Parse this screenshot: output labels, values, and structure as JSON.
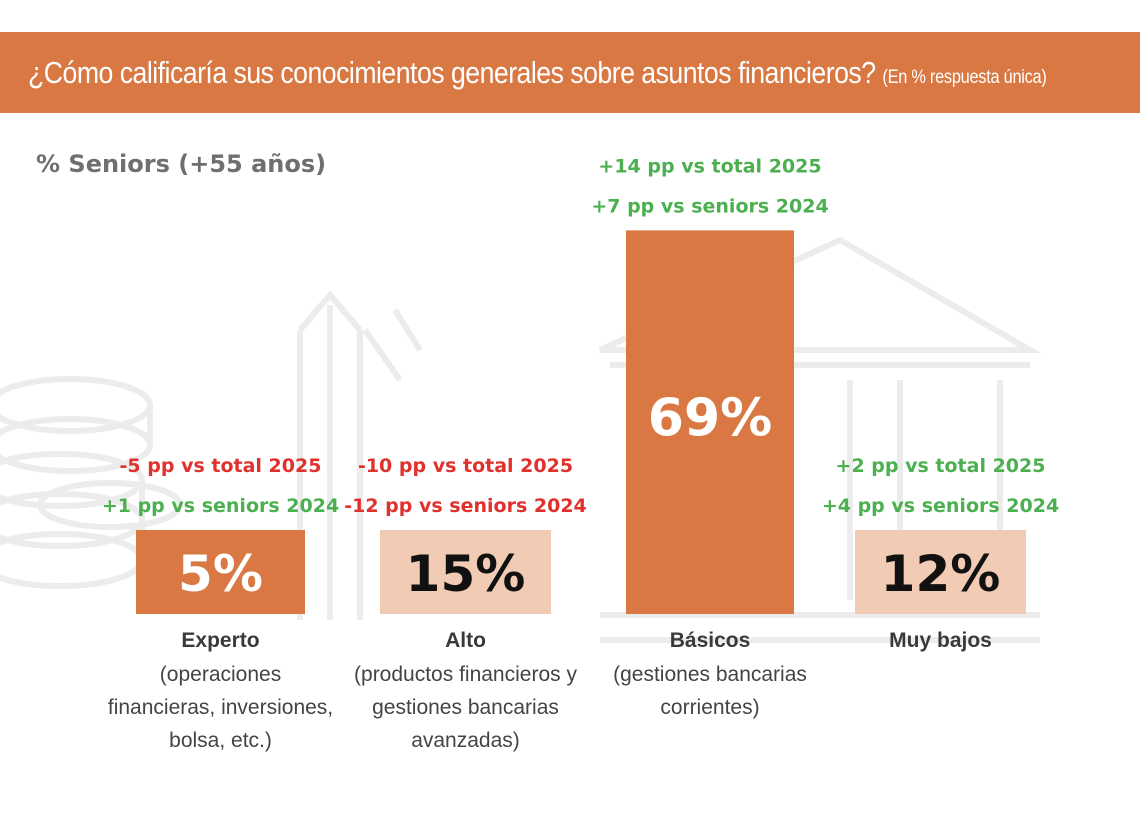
{
  "header": {
    "title": "¿Cómo calificaría sus conocimientos generales sobre asuntos financieros?",
    "title_note": "(En % respuesta única)"
  },
  "colors": {
    "banner": "#d97842",
    "bar_dark": "#d97842",
    "bar_light": "#f1cbb3",
    "negative": "#e0312d",
    "positive": "#4caf50"
  },
  "chart_data": {
    "type": "bar",
    "title": "¿Cómo calificaría sus conocimientos generales sobre asuntos financieros?",
    "subtitle": "% Seniors (+55 años)",
    "unit": "%",
    "categories": [
      "Experto",
      "Alto",
      "Básicos",
      "Muy bajos"
    ],
    "category_descriptions": [
      [
        "(operaciones",
        "financieras, inversiones,",
        "bolsa, etc.)"
      ],
      [
        "(productos financieros y",
        "gestiones bancarias",
        "avanzadas)"
      ],
      [
        "(gestiones bancarias",
        "corrientes)"
      ],
      []
    ],
    "values": [
      5,
      15,
      69,
      12
    ],
    "value_labels": [
      "5%",
      "15%",
      "69%",
      "12%"
    ],
    "bar_styles": [
      "dark",
      "light",
      "dark",
      "light"
    ],
    "comparisons": [
      [
        {
          "text": "-5 pp vs total 2025",
          "sign": "negative"
        },
        {
          "text": "+1 pp vs seniors 2024",
          "sign": "positive"
        }
      ],
      [
        {
          "text": "-10 pp vs total 2025",
          "sign": "negative"
        },
        {
          "text": "-12 pp vs seniors 2024",
          "sign": "negative"
        }
      ],
      [
        {
          "text": "+14 pp vs total 2025",
          "sign": "positive"
        },
        {
          "text": "+7 pp vs seniors 2024",
          "sign": "positive"
        }
      ],
      [
        {
          "text": "+2 pp vs total 2025",
          "sign": "positive"
        },
        {
          "text": "+4 pp vs seniors 2024",
          "sign": "positive"
        }
      ]
    ],
    "ylim": [
      0,
      69
    ],
    "grid": false,
    "legend": "none"
  }
}
